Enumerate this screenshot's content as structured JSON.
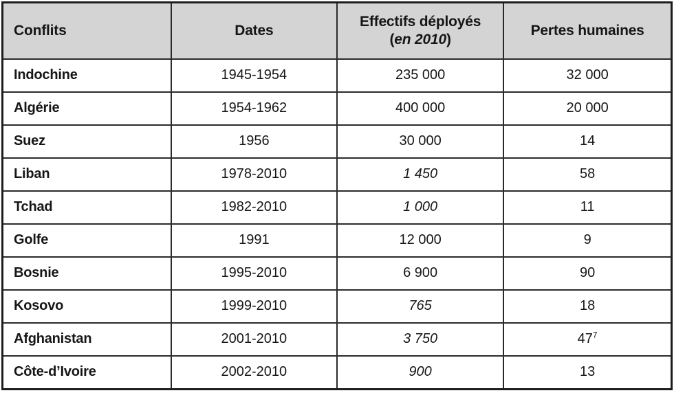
{
  "colors": {
    "header_bg": "#d4d4d4",
    "border": "#1c1c1c",
    "text": "#161616"
  },
  "table": {
    "headers": {
      "conflits": "Conflits",
      "dates": "Dates",
      "effectifs_line1": "Effectifs déployés",
      "effectifs_paren_open": "(",
      "effectifs_year": "en 2010",
      "effectifs_paren_close": ")",
      "pertes": "Pertes humaines"
    },
    "rows": [
      {
        "conflict": "Indochine",
        "dates": "1945-1954",
        "deployed": "235 000",
        "deployed_italic": false,
        "losses": "32 000"
      },
      {
        "conflict": "Algérie",
        "dates": "1954-1962",
        "deployed": "400 000",
        "deployed_italic": false,
        "losses": "20 000"
      },
      {
        "conflict": "Suez",
        "dates": "1956",
        "deployed": "30 000",
        "deployed_italic": false,
        "losses": "14"
      },
      {
        "conflict": "Liban",
        "dates": "1978-2010",
        "deployed": "1 450",
        "deployed_italic": true,
        "losses": "58"
      },
      {
        "conflict": "Tchad",
        "dates": "1982-2010",
        "deployed": "1 000",
        "deployed_italic": true,
        "losses": "11"
      },
      {
        "conflict": "Golfe",
        "dates": "1991",
        "deployed": "12 000",
        "deployed_italic": false,
        "losses": "9"
      },
      {
        "conflict": "Bosnie",
        "dates": "1995-2010",
        "deployed": "6 900",
        "deployed_italic": false,
        "losses": "90"
      },
      {
        "conflict": "Kosovo",
        "dates": "1999-2010",
        "deployed": "765",
        "deployed_italic": true,
        "losses": "18"
      },
      {
        "conflict": "Afghanistan",
        "dates": "2001-2010",
        "deployed": "3 750",
        "deployed_italic": true,
        "losses": "47",
        "losses_sup": "7"
      },
      {
        "conflict": "Côte-d’Ivoire",
        "dates": "2002-2010",
        "deployed": "900",
        "deployed_italic": true,
        "losses": "13"
      }
    ]
  },
  "chart_data": {
    "type": "table",
    "columns": [
      "Conflits",
      "Dates",
      "Effectifs déployés (en 2010)",
      "Pertes humaines"
    ],
    "rows": [
      [
        "Indochine",
        "1945-1954",
        235000,
        32000
      ],
      [
        "Algérie",
        "1954-1962",
        400000,
        20000
      ],
      [
        "Suez",
        "1956",
        30000,
        14
      ],
      [
        "Liban",
        "1978-2010",
        1450,
        58
      ],
      [
        "Tchad",
        "1982-2010",
        1000,
        11
      ],
      [
        "Golfe",
        "1991",
        12000,
        9
      ],
      [
        "Bosnie",
        "1995-2010",
        6900,
        90
      ],
      [
        "Kosovo",
        "1999-2010",
        765,
        18
      ],
      [
        "Afghanistan",
        "2001-2010",
        3750,
        47
      ],
      [
        "Côte-d’Ivoire",
        "2002-2010",
        900,
        13
      ]
    ]
  }
}
